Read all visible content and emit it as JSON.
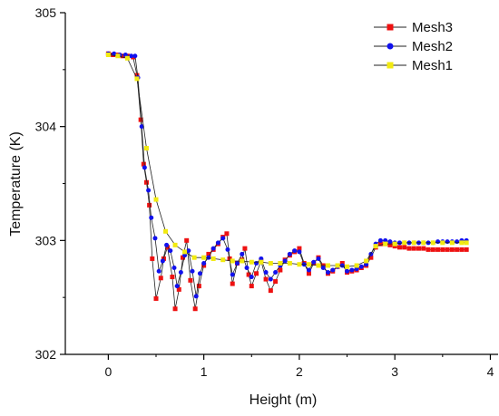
{
  "chart_data": {
    "type": "line",
    "xlabel": "Height (m)",
    "ylabel": "Temperature (K)",
    "xlim": [
      -0.45,
      4.1
    ],
    "ylim": [
      302,
      305
    ],
    "xticks": [
      0,
      1,
      2,
      3,
      4
    ],
    "yticks": [
      302,
      303,
      304,
      305
    ],
    "grid": false,
    "legend_position": "top-right",
    "series": [
      {
        "name": "Mesh3",
        "color": "#ee1111",
        "marker": "square",
        "points": [
          [
            0.0,
            304.64
          ],
          [
            0.05,
            304.63
          ],
          [
            0.1,
            304.63
          ],
          [
            0.15,
            304.62
          ],
          [
            0.2,
            304.62
          ],
          [
            0.26,
            304.61
          ],
          [
            0.3,
            304.45
          ],
          [
            0.34,
            304.06
          ],
          [
            0.37,
            303.67
          ],
          [
            0.4,
            303.51
          ],
          [
            0.43,
            303.31
          ],
          [
            0.46,
            302.84
          ],
          [
            0.5,
            302.49
          ],
          [
            0.55,
            302.67
          ],
          [
            0.58,
            302.84
          ],
          [
            0.62,
            302.94
          ],
          [
            0.67,
            302.68
          ],
          [
            0.7,
            302.4
          ],
          [
            0.74,
            302.57
          ],
          [
            0.78,
            302.85
          ],
          [
            0.82,
            303.0
          ],
          [
            0.86,
            302.65
          ],
          [
            0.91,
            302.4
          ],
          [
            0.95,
            302.6
          ],
          [
            1.0,
            302.78
          ],
          [
            1.05,
            302.88
          ],
          [
            1.1,
            302.92
          ],
          [
            1.15,
            302.97
          ],
          [
            1.2,
            303.03
          ],
          [
            1.24,
            303.06
          ],
          [
            1.27,
            302.84
          ],
          [
            1.3,
            302.62
          ],
          [
            1.35,
            302.8
          ],
          [
            1.4,
            302.83
          ],
          [
            1.43,
            302.93
          ],
          [
            1.47,
            302.7
          ],
          [
            1.5,
            302.6
          ],
          [
            1.55,
            302.71
          ],
          [
            1.6,
            302.82
          ],
          [
            1.65,
            302.66
          ],
          [
            1.7,
            302.56
          ],
          [
            1.75,
            302.64
          ],
          [
            1.8,
            302.74
          ],
          [
            1.85,
            302.83
          ],
          [
            1.9,
            302.87
          ],
          [
            1.95,
            302.9
          ],
          [
            2.0,
            302.93
          ],
          [
            2.05,
            302.8
          ],
          [
            2.1,
            302.71
          ],
          [
            2.15,
            302.8
          ],
          [
            2.2,
            302.85
          ],
          [
            2.25,
            302.78
          ],
          [
            2.3,
            302.71
          ],
          [
            2.35,
            302.73
          ],
          [
            2.4,
            302.77
          ],
          [
            2.45,
            302.8
          ],
          [
            2.5,
            302.72
          ],
          [
            2.55,
            302.73
          ],
          [
            2.6,
            302.74
          ],
          [
            2.65,
            302.76
          ],
          [
            2.7,
            302.78
          ],
          [
            2.75,
            302.85
          ],
          [
            2.8,
            302.94
          ],
          [
            2.85,
            302.97
          ],
          [
            2.9,
            302.97
          ],
          [
            2.95,
            302.96
          ],
          [
            3.0,
            302.95
          ],
          [
            3.05,
            302.94
          ],
          [
            3.1,
            302.94
          ],
          [
            3.15,
            302.93
          ],
          [
            3.2,
            302.93
          ],
          [
            3.25,
            302.93
          ],
          [
            3.3,
            302.93
          ],
          [
            3.35,
            302.92
          ],
          [
            3.4,
            302.92
          ],
          [
            3.45,
            302.92
          ],
          [
            3.5,
            302.92
          ],
          [
            3.55,
            302.92
          ],
          [
            3.6,
            302.92
          ],
          [
            3.65,
            302.92
          ],
          [
            3.7,
            302.92
          ],
          [
            3.75,
            302.92
          ]
        ]
      },
      {
        "name": "Mesh2",
        "color": "#1111ee",
        "marker": "circle",
        "points": [
          [
            0.0,
            304.64
          ],
          [
            0.06,
            304.64
          ],
          [
            0.12,
            304.63
          ],
          [
            0.18,
            304.63
          ],
          [
            0.24,
            304.62
          ],
          [
            0.28,
            304.62
          ],
          [
            0.31,
            304.43
          ],
          [
            0.35,
            304.0
          ],
          [
            0.38,
            303.64
          ],
          [
            0.42,
            303.44
          ],
          [
            0.45,
            303.2
          ],
          [
            0.49,
            303.02
          ],
          [
            0.53,
            302.73
          ],
          [
            0.57,
            302.82
          ],
          [
            0.61,
            302.96
          ],
          [
            0.65,
            302.91
          ],
          [
            0.69,
            302.76
          ],
          [
            0.72,
            302.6
          ],
          [
            0.76,
            302.72
          ],
          [
            0.8,
            302.87
          ],
          [
            0.84,
            302.91
          ],
          [
            0.88,
            302.73
          ],
          [
            0.92,
            302.51
          ],
          [
            0.96,
            302.71
          ],
          [
            1.0,
            302.8
          ],
          [
            1.05,
            302.85
          ],
          [
            1.1,
            302.93
          ],
          [
            1.15,
            302.98
          ],
          [
            1.2,
            303.02
          ],
          [
            1.25,
            302.92
          ],
          [
            1.3,
            302.7
          ],
          [
            1.35,
            302.8
          ],
          [
            1.4,
            302.88
          ],
          [
            1.45,
            302.76
          ],
          [
            1.5,
            302.68
          ],
          [
            1.55,
            302.8
          ],
          [
            1.6,
            302.84
          ],
          [
            1.65,
            302.72
          ],
          [
            1.7,
            302.66
          ],
          [
            1.75,
            302.72
          ],
          [
            1.8,
            302.78
          ],
          [
            1.85,
            302.82
          ],
          [
            1.9,
            302.88
          ],
          [
            1.95,
            302.91
          ],
          [
            2.0,
            302.9
          ],
          [
            2.05,
            302.79
          ],
          [
            2.1,
            302.74
          ],
          [
            2.15,
            302.81
          ],
          [
            2.2,
            302.84
          ],
          [
            2.25,
            302.76
          ],
          [
            2.3,
            302.72
          ],
          [
            2.35,
            302.74
          ],
          [
            2.4,
            302.77
          ],
          [
            2.45,
            302.78
          ],
          [
            2.5,
            302.73
          ],
          [
            2.55,
            302.74
          ],
          [
            2.6,
            302.75
          ],
          [
            2.65,
            302.77
          ],
          [
            2.7,
            302.79
          ],
          [
            2.75,
            302.88
          ],
          [
            2.8,
            302.97
          ],
          [
            2.85,
            303.0
          ],
          [
            2.9,
            303.0
          ],
          [
            2.95,
            302.99
          ],
          [
            3.0,
            302.98
          ],
          [
            3.05,
            302.98
          ],
          [
            3.1,
            302.98
          ],
          [
            3.15,
            302.98
          ],
          [
            3.2,
            302.98
          ],
          [
            3.25,
            302.98
          ],
          [
            3.3,
            302.98
          ],
          [
            3.35,
            302.98
          ],
          [
            3.4,
            302.98
          ],
          [
            3.45,
            302.99
          ],
          [
            3.5,
            302.99
          ],
          [
            3.55,
            302.99
          ],
          [
            3.6,
            302.99
          ],
          [
            3.65,
            302.99
          ],
          [
            3.7,
            303.0
          ],
          [
            3.75,
            303.0
          ]
        ]
      },
      {
        "name": "Mesh1",
        "color": "#f2ea10",
        "marker": "square",
        "points": [
          [
            0.0,
            304.63
          ],
          [
            0.1,
            304.62
          ],
          [
            0.2,
            304.6
          ],
          [
            0.3,
            304.42
          ],
          [
            0.4,
            303.81
          ],
          [
            0.5,
            303.36
          ],
          [
            0.6,
            303.08
          ],
          [
            0.7,
            302.96
          ],
          [
            0.8,
            302.9
          ],
          [
            0.9,
            302.85
          ],
          [
            1.0,
            302.85
          ],
          [
            1.1,
            302.84
          ],
          [
            1.2,
            302.83
          ],
          [
            1.3,
            302.82
          ],
          [
            1.4,
            302.82
          ],
          [
            1.5,
            302.81
          ],
          [
            1.6,
            302.81
          ],
          [
            1.7,
            302.8
          ],
          [
            1.8,
            302.8
          ],
          [
            1.9,
            302.8
          ],
          [
            2.0,
            302.79
          ],
          [
            2.1,
            302.79
          ],
          [
            2.2,
            302.78
          ],
          [
            2.3,
            302.78
          ],
          [
            2.4,
            302.78
          ],
          [
            2.5,
            302.77
          ],
          [
            2.6,
            302.78
          ],
          [
            2.7,
            302.82
          ],
          [
            2.8,
            302.95
          ],
          [
            2.9,
            302.97
          ],
          [
            3.0,
            302.97
          ],
          [
            3.1,
            302.98
          ],
          [
            3.2,
            302.98
          ],
          [
            3.3,
            302.98
          ],
          [
            3.4,
            302.98
          ],
          [
            3.5,
            302.98
          ],
          [
            3.6,
            302.98
          ],
          [
            3.7,
            302.98
          ],
          [
            3.75,
            302.98
          ]
        ]
      }
    ]
  }
}
